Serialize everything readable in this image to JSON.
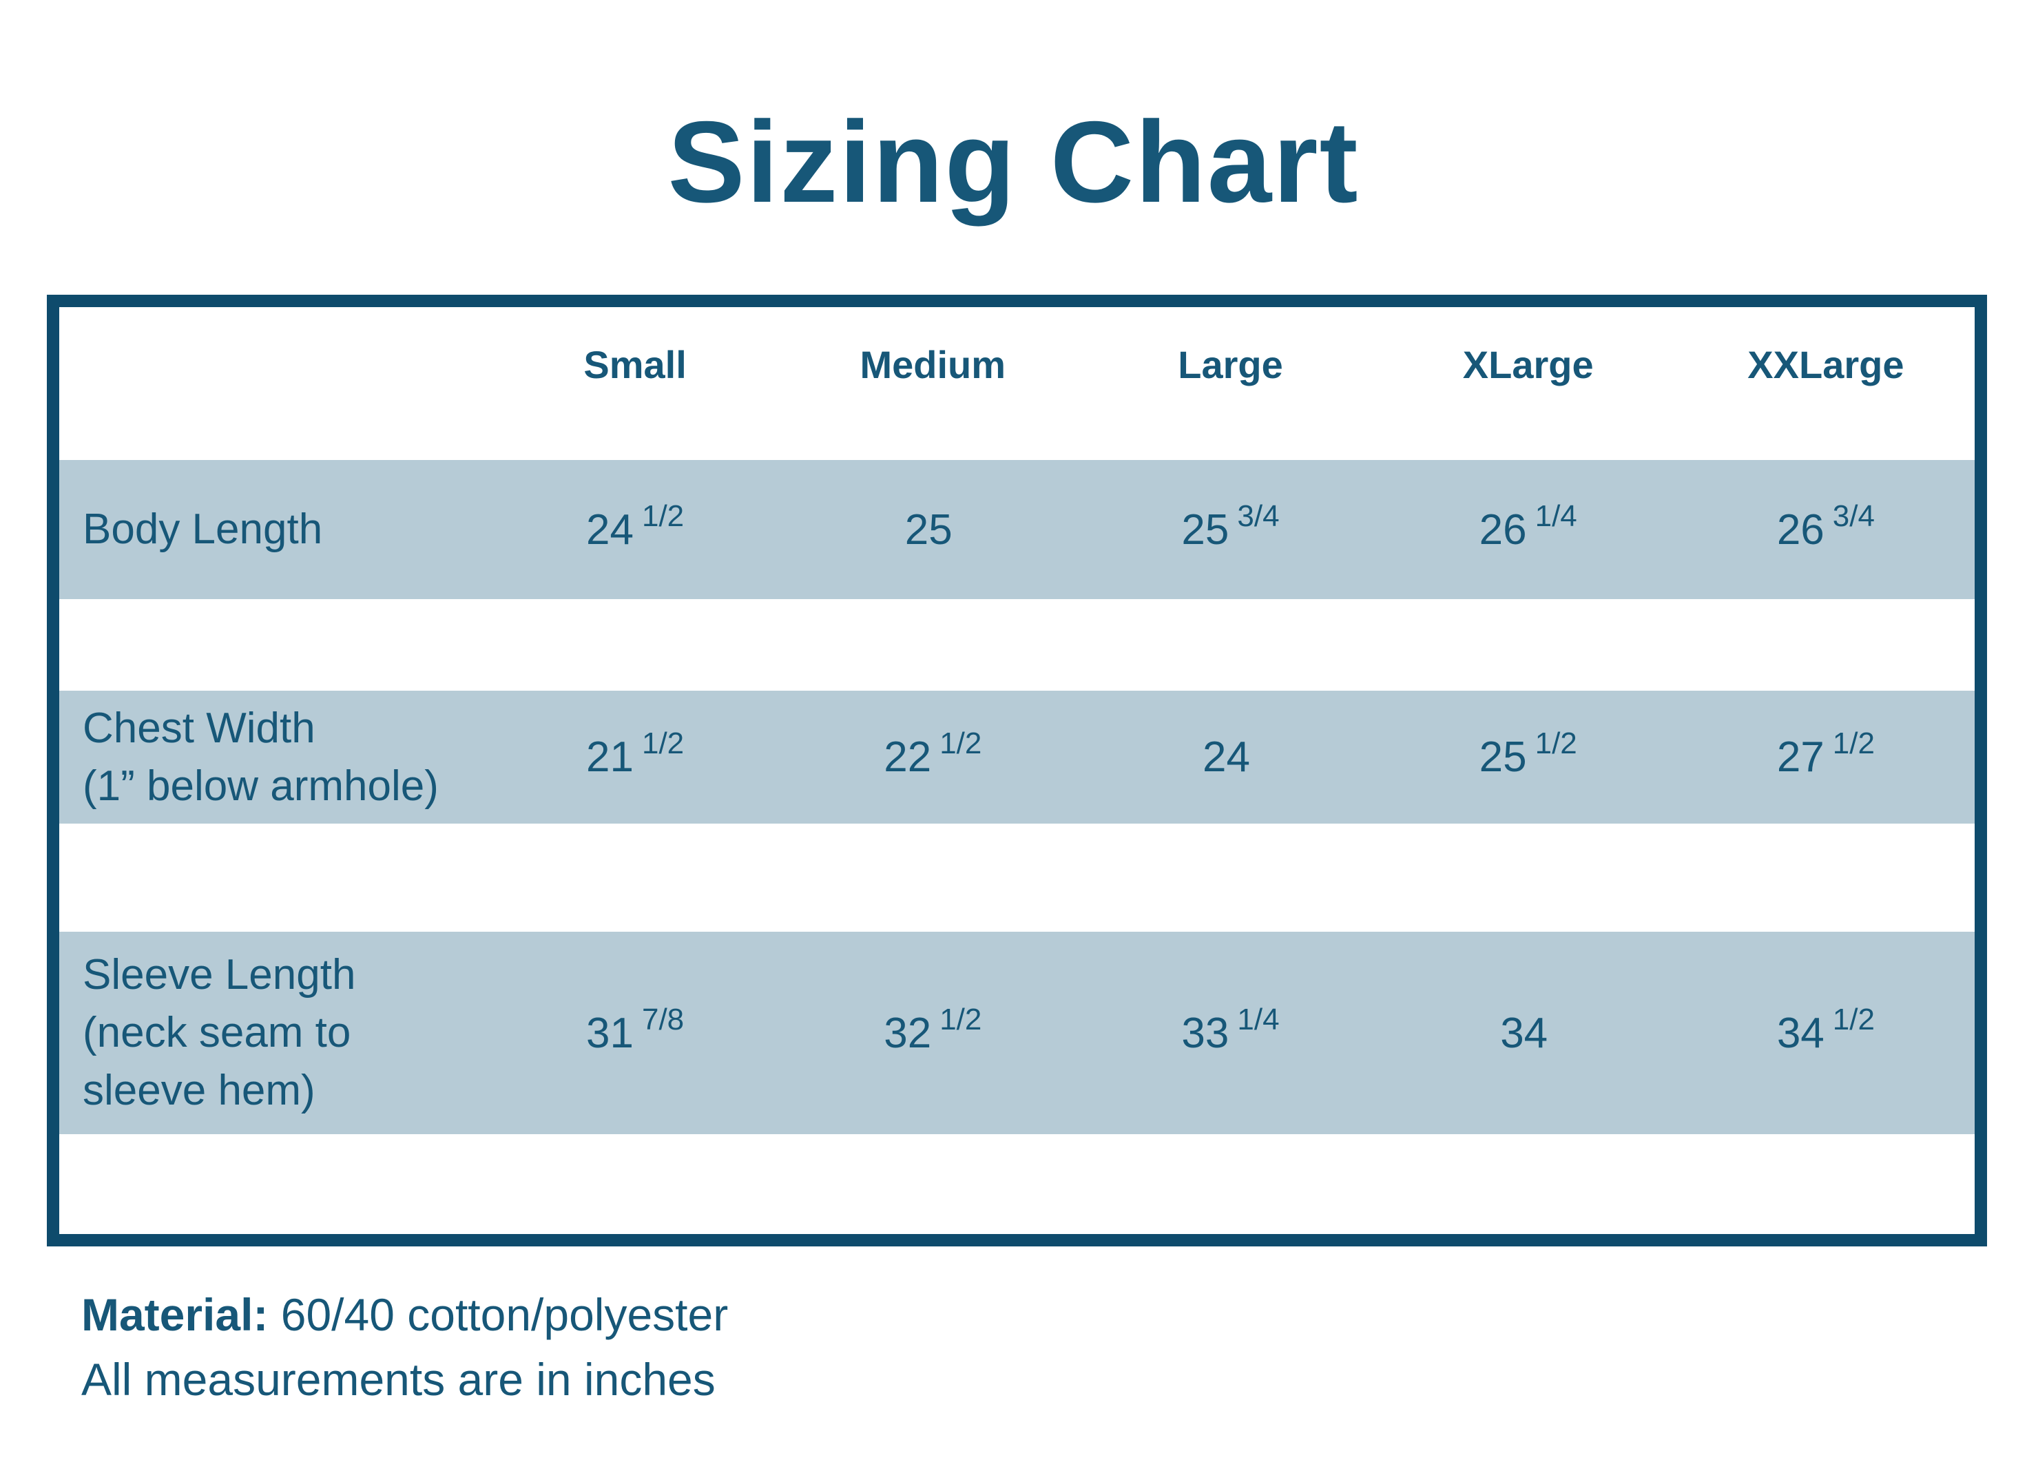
{
  "title": "Sizing Chart",
  "colors": {
    "text": "#175778",
    "border": "#0e4b6c",
    "row_band": "#b6cbd6",
    "background": "#ffffff"
  },
  "table": {
    "columns": [
      "Small",
      "Medium",
      "Large",
      "XLarge",
      "XXLarge"
    ],
    "rows": [
      {
        "label_lines": [
          "Body Length"
        ],
        "values": [
          {
            "whole": "24",
            "frac": "1/2"
          },
          {
            "whole": "25",
            "frac": ""
          },
          {
            "whole": "25",
            "frac": "3/4"
          },
          {
            "whole": "26",
            "frac": "1/4"
          },
          {
            "whole": "26",
            "frac": "3/4"
          }
        ]
      },
      {
        "label_lines": [
          "Chest Width",
          "(1” below armhole)"
        ],
        "values": [
          {
            "whole": "21",
            "frac": "1/2"
          },
          {
            "whole": "22",
            "frac": "1/2"
          },
          {
            "whole": "24",
            "frac": ""
          },
          {
            "whole": "25",
            "frac": "1/2"
          },
          {
            "whole": "27",
            "frac": "1/2"
          }
        ]
      },
      {
        "label_lines": [
          "Sleeve Length",
          "(neck seam to",
          "sleeve hem)"
        ],
        "values": [
          {
            "whole": "31",
            "frac": "7/8"
          },
          {
            "whole": "32",
            "frac": "1/2"
          },
          {
            "whole": "33",
            "frac": "1/4"
          },
          {
            "whole": "34",
            "frac": ""
          },
          {
            "whole": "34",
            "frac": "1/2"
          }
        ]
      }
    ]
  },
  "footer": {
    "material_label": "Material:",
    "material_value": "60/40 cotton/polyester",
    "note": "All measurements are in inches"
  }
}
